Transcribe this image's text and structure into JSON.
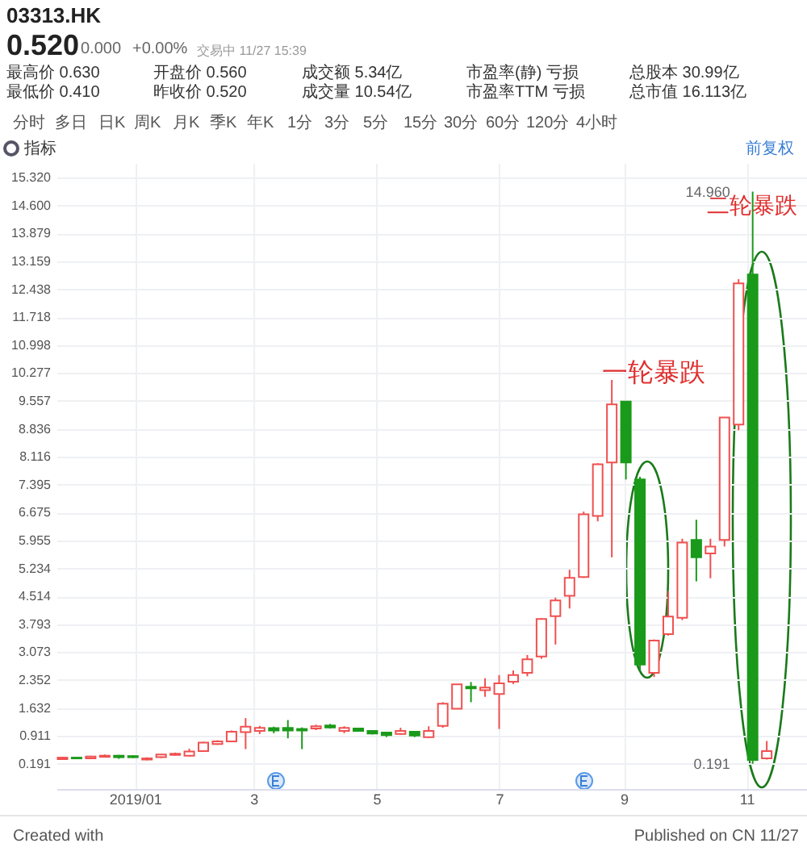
{
  "chart_data": {
    "type": "candlestick",
    "title": "03313.HK",
    "subtitle": "0.520",
    "x": [
      "2018-11-26",
      "2018-12-03",
      "2018-12-10",
      "2018-12-17",
      "2018-12-24",
      "2018-12-31",
      "2019-01-07",
      "2019-01-14",
      "2019-01-21",
      "2019-01-28",
      "2019-02-04",
      "2019-02-11",
      "2019-02-18",
      "2019-02-25",
      "2019-03-04",
      "2019-03-11",
      "2019-03-18",
      "2019-03-25",
      "2019-04-01",
      "2019-04-08",
      "2019-04-15",
      "2019-04-22",
      "2019-04-29",
      "2019-05-06",
      "2019-05-13",
      "2019-05-20",
      "2019-05-27",
      "2019-06-03",
      "2019-06-10",
      "2019-06-17",
      "2019-06-24",
      "2019-07-01",
      "2019-07-08",
      "2019-07-15",
      "2019-07-22",
      "2019-07-29",
      "2019-08-05",
      "2019-08-12",
      "2019-08-19",
      "2019-08-26",
      "2019-09-02",
      "2019-09-09",
      "2019-09-16",
      "2019-09-23",
      "2019-09-30",
      "2019-10-07",
      "2019-10-14",
      "2019-10-21",
      "2019-10-28",
      "2019-11-04",
      "2019-11-11"
    ],
    "ohlc": [
      [
        0.31,
        0.37,
        0.29,
        0.35
      ],
      [
        0.35,
        0.36,
        0.31,
        0.33
      ],
      [
        0.33,
        0.4,
        0.31,
        0.38
      ],
      [
        0.37,
        0.43,
        0.36,
        0.4
      ],
      [
        0.4,
        0.42,
        0.32,
        0.36
      ],
      [
        0.39,
        0.41,
        0.34,
        0.36
      ],
      [
        0.3,
        0.36,
        0.28,
        0.33
      ],
      [
        0.36,
        0.44,
        0.34,
        0.43
      ],
      [
        0.42,
        0.48,
        0.4,
        0.45
      ],
      [
        0.4,
        0.58,
        0.38,
        0.51
      ],
      [
        0.52,
        0.76,
        0.5,
        0.74
      ],
      [
        0.7,
        0.8,
        0.68,
        0.77
      ],
      [
        0.77,
        1.05,
        0.75,
        1.02
      ],
      [
        1.01,
        1.37,
        0.57,
        1.15
      ],
      [
        1.04,
        1.17,
        0.96,
        1.12
      ],
      [
        1.11,
        1.15,
        0.98,
        1.05
      ],
      [
        1.12,
        1.32,
        0.85,
        1.05
      ],
      [
        1.09,
        1.13,
        0.57,
        1.05
      ],
      [
        1.1,
        1.2,
        1.06,
        1.16
      ],
      [
        1.18,
        1.22,
        1.1,
        1.13
      ],
      [
        1.04,
        1.16,
        0.98,
        1.12
      ],
      [
        1.1,
        1.11,
        1.02,
        1.04
      ],
      [
        1.04,
        1.05,
        0.95,
        0.97
      ],
      [
        1.0,
        1.0,
        0.88,
        0.93
      ],
      [
        0.96,
        1.12,
        0.94,
        1.04
      ],
      [
        1.02,
        1.04,
        0.88,
        0.92
      ],
      [
        0.88,
        1.16,
        0.86,
        1.04
      ],
      [
        1.17,
        1.78,
        1.12,
        1.74
      ],
      [
        1.61,
        2.24,
        1.6,
        2.24
      ],
      [
        2.18,
        2.3,
        1.78,
        2.14
      ],
      [
        2.09,
        2.4,
        1.92,
        2.16
      ],
      [
        1.99,
        2.48,
        1.09,
        2.27
      ],
      [
        2.31,
        2.6,
        2.25,
        2.48
      ],
      [
        2.54,
        3.0,
        2.45,
        2.89
      ],
      [
        2.96,
        3.95,
        2.9,
        3.93
      ],
      [
        4.0,
        4.48,
        3.27,
        4.41
      ],
      [
        4.53,
        5.2,
        4.2,
        4.99
      ],
      [
        5.01,
        6.7,
        4.99,
        6.63
      ],
      [
        6.59,
        7.95,
        6.45,
        7.92
      ],
      [
        7.97,
        10.1,
        5.52,
        9.47
      ],
      [
        9.54,
        9.54,
        7.53,
        7.97
      ],
      [
        7.53,
        7.6,
        2.61,
        2.75
      ],
      [
        2.54,
        3.4,
        2.43,
        3.37
      ],
      [
        3.54,
        4.65,
        3.5,
        3.99
      ],
      [
        3.96,
        6.0,
        3.9,
        5.9
      ],
      [
        5.97,
        6.49,
        4.9,
        5.52
      ],
      [
        5.62,
        6.0,
        4.98,
        5.8
      ],
      [
        5.97,
        9.13,
        5.8,
        9.13
      ],
      [
        8.95,
        12.7,
        8.8,
        12.59
      ],
      [
        12.82,
        14.96,
        0.191,
        0.29
      ],
      [
        0.33,
        0.78,
        0.3,
        0.52
      ]
    ],
    "xlim": [
      "2018-11-23",
      "2019-12-01"
    ],
    "xticks": [
      {
        "value": "2019-01-01",
        "label": "2019/01"
      },
      {
        "value": "2019-03-01",
        "label": "3"
      },
      {
        "value": "2019-05-01",
        "label": "5"
      },
      {
        "value": "2019-07-01",
        "label": "7"
      },
      {
        "value": "2019-09-01",
        "label": "9"
      },
      {
        "value": "2019-11-01",
        "label": "11"
      }
    ],
    "ylim": [
      -0.46,
      15.7
    ],
    "yticks": [
      {
        "value": 0.191,
        "label": "0.191"
      },
      {
        "value": 0.911,
        "label": "0.911"
      },
      {
        "value": 1.632,
        "label": "1.632"
      },
      {
        "value": 2.352,
        "label": "2.352"
      },
      {
        "value": 3.073,
        "label": "3.073"
      },
      {
        "value": 3.793,
        "label": "3.793"
      },
      {
        "value": 4.514,
        "label": "4.514"
      },
      {
        "value": 5.234,
        "label": "5.234"
      },
      {
        "value": 5.955,
        "label": "5.955"
      },
      {
        "value": 6.675,
        "label": "6.675"
      },
      {
        "value": 7.395,
        "label": "7.395"
      },
      {
        "value": 8.116,
        "label": "8.116"
      },
      {
        "value": 8.836,
        "label": "8.836"
      },
      {
        "value": 9.557,
        "label": "9.557"
      },
      {
        "value": 10.277,
        "label": "10.277"
      },
      {
        "value": 10.998,
        "label": "10.998"
      },
      {
        "value": 11.718,
        "label": "11.718"
      },
      {
        "value": 12.438,
        "label": "12.438"
      },
      {
        "value": 13.159,
        "label": "13.159"
      },
      {
        "value": 13.879,
        "label": "13.879"
      },
      {
        "value": 14.6,
        "label": "14.600"
      },
      {
        "value": 15.32,
        "label": "15.320"
      }
    ],
    "grid": true,
    "annotations": [
      "0.000",
      "+0.00%",
      "交易中 11/27 15:39",
      "最高价 0.630",
      "最低价 0.410",
      "开盘价 0.560",
      "昨收价 0.520",
      "成交额 5.34亿",
      "成交量 10.54亿",
      "市盈率(静) 亏损",
      "市盈率TTM 亏损",
      "总股本 30.99亿",
      "总市值 16.113亿",
      "分时",
      "多日",
      "日K",
      "周K",
      "月K",
      "季K",
      "年K",
      "1分",
      "3分",
      "5分",
      "15分",
      "30分",
      "60分",
      "120分",
      "4小时",
      "指标",
      "前复权",
      "Created with",
      "Published on CN 11/27",
      "一轮暴跌",
      "二轮暴跌",
      {
        "text": "14.960",
        "x": "2019-11-04",
        "y": 14.96
      },
      {
        "text": "0.191",
        "x": "2019-11-04",
        "y": 0.191
      }
    ]
  }
}
